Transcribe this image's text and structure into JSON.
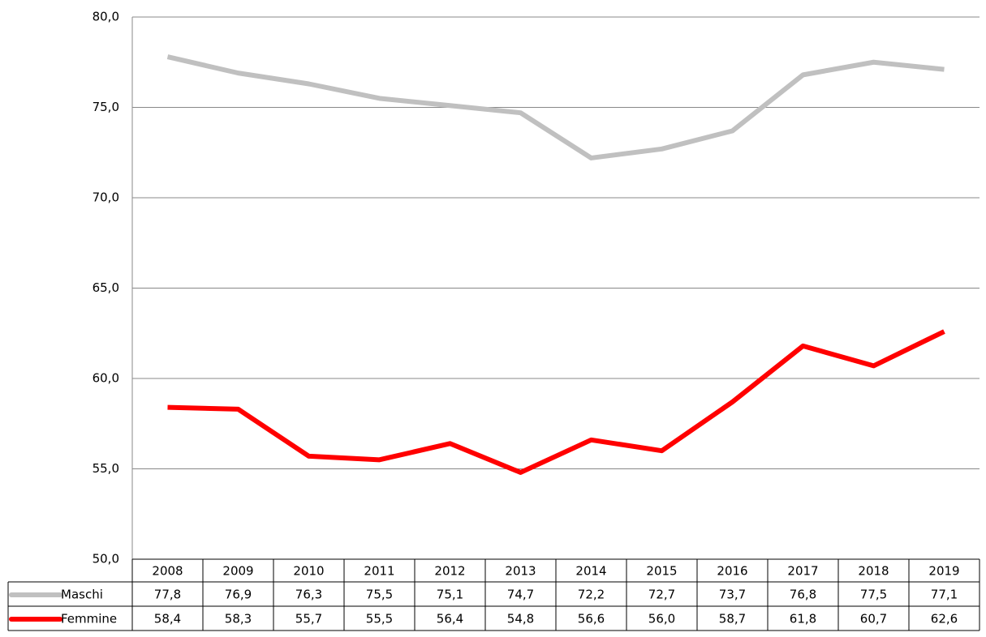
{
  "chart_data": {
    "type": "line",
    "categories": [
      "2008",
      "2009",
      "2010",
      "2011",
      "2012",
      "2013",
      "2014",
      "2015",
      "2016",
      "2017",
      "2018",
      "2019"
    ],
    "series": [
      {
        "name": "Maschi",
        "color": "#c0c0c0",
        "values": [
          77.8,
          76.9,
          76.3,
          75.5,
          75.1,
          74.7,
          72.2,
          72.7,
          73.7,
          76.8,
          77.5,
          77.1
        ],
        "value_labels": [
          "77,8",
          "76,9",
          "76,3",
          "75,5",
          "75,1",
          "74,7",
          "72,2",
          "72,7",
          "73,7",
          "76,8",
          "77,5",
          "77,1"
        ]
      },
      {
        "name": "Femmine",
        "color": "#ff0000",
        "values": [
          58.4,
          58.3,
          55.7,
          55.5,
          56.4,
          54.8,
          56.6,
          56.0,
          58.7,
          61.8,
          60.7,
          62.6
        ],
        "value_labels": [
          "58,4",
          "58,3",
          "55,7",
          "55,5",
          "56,4",
          "54,8",
          "56,6",
          "56,0",
          "58,7",
          "61,8",
          "60,7",
          "62,6"
        ]
      }
    ],
    "ylim": [
      50,
      80
    ],
    "yticks": [
      {
        "value": 50,
        "label": "50,0"
      },
      {
        "value": 55,
        "label": "55,0"
      },
      {
        "value": 60,
        "label": "60,0"
      },
      {
        "value": 65,
        "label": "65,0"
      },
      {
        "value": 70,
        "label": "70,0"
      },
      {
        "value": 75,
        "label": "75,0"
      },
      {
        "value": 80,
        "label": "80,0"
      }
    ],
    "grid": true
  }
}
